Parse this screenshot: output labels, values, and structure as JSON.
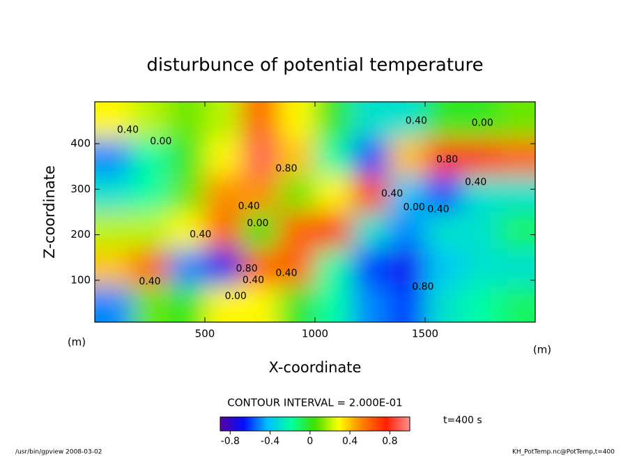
{
  "chart_data": {
    "type": "heatmap",
    "title": "disturbunce of potential temperature",
    "x_label": "X-coordinate",
    "y_label": "Z-coordinate",
    "x_unit": "(m)",
    "y_unit": "(m)",
    "xlim": [
      0,
      2000
    ],
    "ylim": [
      8,
      492
    ],
    "xticks": [
      500,
      1000,
      1500
    ],
    "yticks": [
      100,
      200,
      300,
      400
    ],
    "x": [
      83,
      250,
      417,
      583,
      750,
      917,
      1083,
      1250,
      1417,
      1583,
      1750,
      1917
    ],
    "z": [
      452,
      371,
      290,
      210,
      129,
      48
    ],
    "values": [
      [
        0.3,
        0.2,
        0.1,
        0.2,
        0.6,
        0.3,
        0.0,
        -0.3,
        -0.3,
        0.0,
        0.0,
        0.1
      ],
      [
        -0.5,
        -0.2,
        0.0,
        0.3,
        0.9,
        0.4,
        -0.2,
        -0.6,
        0.4,
        0.7,
        0.7,
        0.6
      ],
      [
        -0.3,
        -0.2,
        0.1,
        0.5,
        0.5,
        0.1,
        0.3,
        0.7,
        -0.4,
        -0.6,
        -0.3,
        -0.3
      ],
      [
        0.2,
        0.2,
        0.3,
        0.6,
        0.0,
        0.6,
        0.7,
        -0.3,
        -0.5,
        -0.3,
        -0.3,
        -0.1
      ],
      [
        0.4,
        0.6,
        -0.5,
        -0.7,
        0.6,
        0.6,
        -0.2,
        -0.6,
        -0.7,
        -0.4,
        -0.3,
        -0.3
      ],
      [
        -0.5,
        0.1,
        0.0,
        0.3,
        0.3,
        0.0,
        -0.2,
        -0.5,
        -0.6,
        -0.3,
        -0.2,
        -0.1
      ]
    ],
    "clim": [
      -0.9,
      1.0
    ],
    "colormap": [
      "#5a00a0",
      "#0010ff",
      "#00c0ff",
      "#00ffa0",
      "#40e000",
      "#ffff00",
      "#ff8000",
      "#ff2000",
      "#ff9090"
    ],
    "colorbar_ticks": [
      -0.8,
      -0.4,
      0,
      0.4,
      0.8
    ],
    "contour_labels": [
      {
        "text": "0.40",
        "x": 150,
        "z": 430
      },
      {
        "text": "0.00",
        "x": 300,
        "z": 405
      },
      {
        "text": "0.80",
        "x": 870,
        "z": 345
      },
      {
        "text": "0.40",
        "x": 700,
        "z": 262
      },
      {
        "text": "0.00",
        "x": 740,
        "z": 225
      },
      {
        "text": "0.40",
        "x": 480,
        "z": 200
      },
      {
        "text": "0.80",
        "x": 690,
        "z": 125
      },
      {
        "text": "0.40",
        "x": 720,
        "z": 100
      },
      {
        "text": "0.00",
        "x": 640,
        "z": 65
      },
      {
        "text": "0.40",
        "x": 250,
        "z": 97
      },
      {
        "text": "0.40",
        "x": 870,
        "z": 115
      },
      {
        "text": "0.40",
        "x": 1350,
        "z": 290
      },
      {
        "text": "0.00",
        "x": 1450,
        "z": 260
      },
      {
        "text": "0.40",
        "x": 1560,
        "z": 255
      },
      {
        "text": "0.80",
        "x": 1600,
        "z": 365
      },
      {
        "text": "0.40",
        "x": 1460,
        "z": 450
      },
      {
        "text": "0.00",
        "x": 1760,
        "z": 445
      },
      {
        "text": "0.40",
        "x": 1730,
        "z": 315
      },
      {
        "text": "0.80",
        "x": 1490,
        "z": 85
      }
    ],
    "contour_interval": "CONTOUR INTERVAL = 2.000E-01",
    "time_label": "t=400 s",
    "footer_left": "/usr/bin/gpview  2008-03-02",
    "footer_right": "KH_PotTemp.nc@PotTemp,t=400"
  }
}
